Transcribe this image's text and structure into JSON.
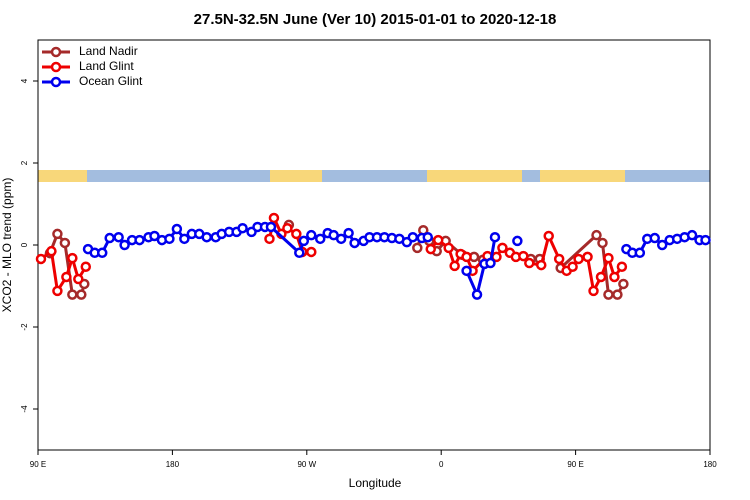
{
  "chart_data": {
    "type": "line",
    "title": "27.5N-32.5N June (Ver 10)   2015-01-01 to 2020-12-18",
    "x_label": "Longitude",
    "y_label": "XCO2 - MLO trend (ppm)",
    "xlim": [
      90,
      540
    ],
    "xticks": [
      {
        "value": 90,
        "label": "90 E"
      },
      180,
      {
        "value": 270,
        "label": "90 W"
      },
      {
        "value": 360,
        "label": "0"
      },
      {
        "value": 450,
        "label": "90 E"
      },
      {
        "value": 540,
        "label": "180"
      }
    ],
    "ylim": [
      -5,
      5
    ],
    "yticks": [
      -4,
      -2,
      0,
      2,
      4
    ],
    "legend": "top-left",
    "series": [
      {
        "name": "Land Nadir",
        "color": "#a52a2a",
        "x": [
          98,
          103,
          108,
          113,
          119,
          121,
          null,
          258,
          null,
          344,
          348,
          352,
          357,
          363,
          374,
          382,
          388,
          null,
          420,
          426,
          null,
          440,
          464,
          468,
          472,
          478,
          482
        ],
        "values": [
          -0.2,
          0.27,
          0.05,
          -1.21,
          -1.21,
          -0.95,
          null,
          0.49,
          null,
          -0.07,
          0.36,
          0.1,
          -0.15,
          0.1,
          -0.24,
          -0.29,
          -0.36,
          null,
          -0.34,
          -0.34,
          null,
          -0.56,
          0.24,
          0.05,
          -1.21,
          -1.21,
          -0.95
        ]
      },
      {
        "name": "Land Glint",
        "color": "#ee0000",
        "x": [
          92,
          99,
          103,
          109,
          113,
          117,
          122,
          null,
          245,
          248,
          253,
          257,
          263,
          267,
          273,
          null,
          353,
          358,
          365,
          369,
          373,
          377,
          381,
          391,
          397,
          401,
          406,
          410,
          415,
          419,
          427,
          432,
          439,
          444,
          448,
          452,
          458,
          462,
          467,
          472,
          476,
          481
        ],
        "values": [
          -0.34,
          -0.15,
          -1.12,
          -0.78,
          -0.32,
          -0.83,
          -0.53,
          null,
          0.15,
          0.66,
          0.27,
          0.41,
          0.27,
          -0.17,
          -0.17,
          null,
          -0.1,
          0.12,
          -0.07,
          -0.51,
          -0.22,
          -0.29,
          -0.63,
          -0.27,
          -0.29,
          -0.07,
          -0.19,
          -0.29,
          -0.27,
          -0.44,
          -0.49,
          0.22,
          -0.34,
          -0.63,
          -0.53,
          -0.34,
          -0.29,
          -1.12,
          -0.78,
          -0.32,
          -0.78,
          -0.53
        ]
      },
      {
        "name": "Ocean Glint",
        "color": "#0000ee",
        "x": [
          123.5,
          128,
          133,
          138,
          144,
          148,
          153,
          158,
          164,
          168,
          173,
          178,
          183,
          188,
          193,
          198,
          203,
          209,
          213,
          218,
          223,
          227,
          233,
          237,
          242,
          246,
          265,
          268,
          273,
          279,
          284,
          288,
          293,
          298,
          302,
          308,
          312,
          317,
          322,
          327,
          332,
          337,
          341,
          347,
          351,
          null,
          377,
          384,
          389,
          393,
          396,
          null,
          411,
          null,
          484,
          488,
          493,
          498,
          503,
          508,
          513,
          518,
          523,
          528,
          533,
          537
        ],
        "values": [
          -0.1,
          -0.19,
          -0.19,
          0.17,
          0.19,
          0,
          0.12,
          0.12,
          0.19,
          0.22,
          0.12,
          0.15,
          0.39,
          0.15,
          0.27,
          0.27,
          0.19,
          0.19,
          0.27,
          0.32,
          0.32,
          0.41,
          0.32,
          0.44,
          0.44,
          0.44,
          -0.19,
          0.1,
          0.24,
          0.15,
          0.29,
          0.24,
          0.15,
          0.29,
          0.05,
          0.1,
          0.19,
          0.19,
          0.19,
          0.17,
          0.15,
          0.07,
          0.19,
          0.17,
          0.19,
          null,
          -0.63,
          -1.21,
          -0.46,
          -0.44,
          0.19,
          null,
          0.1,
          null,
          -0.1,
          -0.19,
          -0.19,
          0.15,
          0.17,
          0,
          0.12,
          0.15,
          0.19,
          0.24,
          0.12,
          0.12
        ]
      }
    ]
  }
}
